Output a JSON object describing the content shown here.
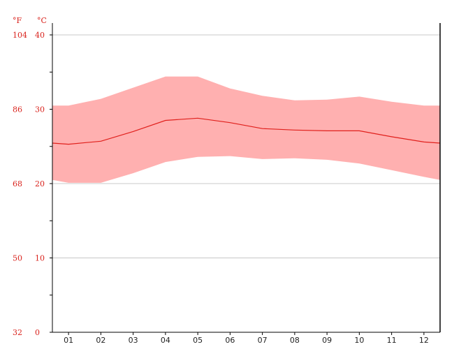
{
  "chart_data": {
    "type": "area",
    "title": "",
    "xlabel": "",
    "ylabel": "",
    "units": {
      "fahrenheit": "°F",
      "celsius": "°C"
    },
    "categories": [
      "01",
      "02",
      "03",
      "04",
      "05",
      "06",
      "07",
      "08",
      "09",
      "10",
      "11",
      "12"
    ],
    "ylim": [
      0,
      40
    ],
    "y_ticks_c": [
      "0",
      "10",
      "20",
      "30",
      "40"
    ],
    "y_ticks_f": [
      "32",
      "50",
      "68",
      "86",
      "104"
    ],
    "grid": "horizontal",
    "series": [
      {
        "values": [
          25.3,
          25.7,
          27.0,
          28.5,
          28.8,
          28.2,
          27.4,
          27.2,
          27.1,
          27.1,
          26.3,
          25.6
        ]
      },
      {
        "values": [
          30.5,
          31.4,
          32.9,
          34.4,
          34.4,
          32.8,
          31.8,
          31.2,
          31.3,
          31.7,
          31.0,
          30.5
        ]
      },
      {
        "values": [
          20.1,
          20.1,
          21.4,
          22.9,
          23.6,
          23.7,
          23.3,
          23.4,
          23.2,
          22.7,
          21.8,
          20.9
        ]
      }
    ],
    "colors": {
      "band": "#ffb0b0",
      "line": "#e0201c",
      "axis": "#000000",
      "grid": "#c8c8c8",
      "label": "#d9231d"
    }
  }
}
